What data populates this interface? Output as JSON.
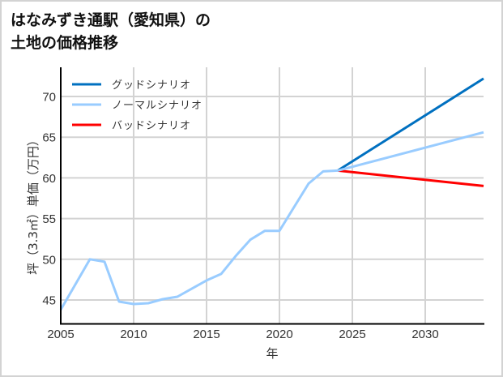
{
  "title": {
    "line1": "はなみずき通駅（愛知県）の",
    "line2": "土地の価格推移"
  },
  "chart_data": {
    "type": "line",
    "title": "はなみずき通駅（愛知県）の土地の価格推移",
    "xlabel": "年",
    "ylabel": "坪（3.3㎡）単価（万円）",
    "xlim": [
      2005,
      2034
    ],
    "ylim": [
      42,
      74.5
    ],
    "grid": true,
    "legend_position": "upper left",
    "x_ticks": [
      2005,
      2010,
      2015,
      2020,
      2025,
      2030
    ],
    "y_ticks": [
      45,
      50,
      55,
      60,
      65,
      70
    ],
    "series": [
      {
        "name": "グッドシナリオ",
        "color": "#0070c0",
        "x": [
          2024,
          2034
        ],
        "values": [
          60.9,
          72.2
        ]
      },
      {
        "name": "ノーマルシナリオ",
        "color": "#99ccff",
        "x": [
          2005,
          2006,
          2007,
          2008,
          2009,
          2010,
          2011,
          2012,
          2013,
          2014,
          2015,
          2016,
          2017,
          2018,
          2019,
          2020,
          2021,
          2022,
          2023,
          2024,
          2034
        ],
        "values": [
          43.8,
          46.9,
          50.0,
          49.7,
          44.8,
          44.5,
          44.6,
          45.1,
          45.4,
          46.4,
          47.4,
          48.2,
          50.4,
          52.4,
          53.5,
          53.5,
          56.4,
          59.3,
          60.8,
          60.9,
          65.6
        ]
      },
      {
        "name": "バッドシナリオ",
        "color": "#ff0000",
        "x": [
          2024,
          2034
        ],
        "values": [
          60.9,
          59.0
        ]
      }
    ]
  },
  "axes": {
    "x_label": "年",
    "y_label": "坪（3.3㎡）単価（万円）",
    "x_tick_labels": [
      "2005",
      "2010",
      "2015",
      "2020",
      "2025",
      "2030"
    ],
    "y_tick_labels": [
      "45",
      "50",
      "55",
      "60",
      "65",
      "70"
    ]
  },
  "legend": {
    "items": [
      {
        "label": "グッドシナリオ",
        "color": "#0070c0"
      },
      {
        "label": "ノーマルシナリオ",
        "color": "#99ccff"
      },
      {
        "label": "バッドシナリオ",
        "color": "#ff0000"
      }
    ]
  }
}
